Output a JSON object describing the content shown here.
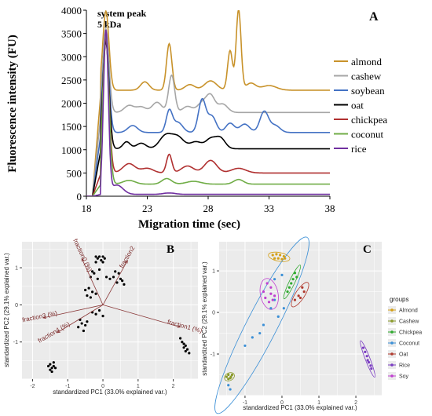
{
  "panel_a": {
    "letter": "A",
    "annotation": [
      "system peak",
      "5 kDa"
    ],
    "xlabel": "Migration time (sec)",
    "ylabel": "Fluorescence intensity (FU)",
    "xticks": [
      "18",
      "23",
      "28",
      "33",
      "38"
    ],
    "yticks": [
      "0",
      "500",
      "1000",
      "1500",
      "2000",
      "2500",
      "3000",
      "3500",
      "4000"
    ]
  },
  "panel_b": {
    "letter": "B",
    "xlabel": "standardized PC1 (33.0% explained var.)",
    "ylabel": "standardized PC2 (29.1% explained var.)",
    "xticks": [
      "-2",
      "-1",
      "0",
      "1",
      "2"
    ],
    "yticks": [
      "-1",
      "0",
      "1"
    ],
    "loadings": [
      "fraction1 (%)",
      "fraction2",
      "fraction3 (%)",
      "fraction4 (%)",
      "fraction0 (%)"
    ]
  },
  "panel_c": {
    "letter": "C",
    "xlabel": "standardized PC1 (33.0% explained var.)",
    "ylabel": "standardized PC2 (29.1% explained var.)",
    "xticks": [
      "-1",
      "0",
      "1",
      "2"
    ],
    "yticks": [
      "-1",
      "0",
      "1"
    ],
    "legend_title": "groups",
    "legend": [
      {
        "name": "Almond",
        "color": "#d4a017"
      },
      {
        "name": "Cashew",
        "color": "#8a9a2a"
      },
      {
        "name": "Chickpea",
        "color": "#2eaa2e"
      },
      {
        "name": "Coconut",
        "color": "#3b8fd6"
      },
      {
        "name": "Oat",
        "color": "#b03a2e"
      },
      {
        "name": "Rice",
        "color": "#7a3cc2"
      },
      {
        "name": "Soy",
        "color": "#c040d0"
      }
    ]
  },
  "chart_data": [
    {
      "type": "line",
      "title": "",
      "xlabel": "Migration time (sec)",
      "ylabel": "Fluorescence intensity (FU)",
      "xlim": [
        18,
        38
      ],
      "ylim": [
        0,
        4000
      ],
      "grid": false,
      "legend_position": "right",
      "series": [
        {
          "name": "almond",
          "color": "#c8922a",
          "baseline": 2280,
          "peaks": [
            [
              19.6,
              1700,
              0.25
            ],
            [
              22.8,
              180,
              0.35
            ],
            [
              24.8,
              1000,
              0.22
            ],
            [
              26.5,
              120,
              0.4
            ],
            [
              28.2,
              200,
              0.5
            ],
            [
              29.8,
              850,
              0.2
            ],
            [
              30.5,
              1730,
              0.2
            ],
            [
              31.5,
              150,
              0.4
            ],
            [
              33,
              100,
              0.6
            ]
          ]
        },
        {
          "name": "cashew",
          "color": "#a6a6a6",
          "baseline": 1800,
          "peaks": [
            [
              19.6,
              1800,
              0.25
            ],
            [
              21.5,
              150,
              0.4
            ],
            [
              22.5,
              120,
              0.4
            ],
            [
              23.8,
              220,
              0.4
            ],
            [
              25,
              800,
              0.25
            ],
            [
              26.3,
              130,
              0.4
            ],
            [
              27.5,
              200,
              0.4
            ],
            [
              28.2,
              350,
              0.35
            ],
            [
              29.2,
              180,
              0.4
            ]
          ]
        },
        {
          "name": "soybean",
          "color": "#4472c4",
          "baseline": 1370,
          "peaks": [
            [
              19.6,
              2000,
              0.25
            ],
            [
              21.8,
              150,
              0.4
            ],
            [
              24.8,
              450,
              0.25
            ],
            [
              25.5,
              220,
              0.4
            ],
            [
              27.5,
              700,
              0.3
            ],
            [
              28.3,
              350,
              0.35
            ],
            [
              29.8,
              200,
              0.35
            ],
            [
              31,
              180,
              0.4
            ],
            [
              32.6,
              450,
              0.35
            ],
            [
              33.5,
              150,
              0.4
            ]
          ]
        },
        {
          "name": "oat",
          "color": "#000000",
          "baseline": 1020,
          "peaks": [
            [
              19.6,
              2300,
              0.25
            ],
            [
              21.3,
              150,
              0.3
            ],
            [
              22.5,
              120,
              0.4
            ],
            [
              24.5,
              280,
              0.5
            ],
            [
              25.5,
              250,
              0.5
            ],
            [
              27,
              150,
              0.5
            ],
            [
              28.2,
              200,
              0.4
            ],
            [
              29,
              230,
              0.4
            ]
          ]
        },
        {
          "name": "chickpea",
          "color": "#b03030",
          "baseline": 500,
          "peaks": [
            [
              19.6,
              2900,
              0.25
            ],
            [
              21.5,
              200,
              0.5
            ],
            [
              23,
              100,
              0.5
            ],
            [
              24.8,
              400,
              0.22
            ],
            [
              26.3,
              150,
              0.5
            ],
            [
              28.2,
              270,
              0.5
            ],
            [
              30.5,
              100,
              0.6
            ]
          ]
        },
        {
          "name": "coconut",
          "color": "#70ad47",
          "baseline": 260,
          "peaks": [
            [
              19.6,
              3200,
              0.25
            ],
            [
              21.5,
              80,
              0.5
            ],
            [
              24.6,
              120,
              0.4
            ],
            [
              26.8,
              60,
              0.6
            ],
            [
              30.5,
              100,
              0.4
            ]
          ]
        },
        {
          "name": "rice",
          "color": "#7030a0",
          "baseline": 40,
          "peaks": [
            [
              19.6,
              3500,
              0.2
            ],
            [
              20.5,
              200,
              0.5
            ],
            [
              24.8,
              30,
              0.5
            ]
          ]
        }
      ]
    },
    {
      "type": "scatter",
      "title": "",
      "xlabel": "standardized PC1 (33.0% explained var.)",
      "ylabel": "standardized PC2 (29.1% explained var.)",
      "xlim": [
        -2.3,
        2.7
      ],
      "ylim": [
        -2.0,
        1.7
      ],
      "points": [
        [
          -1.45,
          -1.7
        ],
        [
          -1.5,
          -1.75
        ],
        [
          -1.4,
          -1.65
        ],
        [
          -1.35,
          -1.7
        ],
        [
          -1.45,
          -1.8
        ],
        [
          -1.5,
          -1.6
        ],
        [
          -1.55,
          -1.65
        ],
        [
          -1.4,
          -1.55
        ],
        [
          -0.2,
          1.3
        ],
        [
          -0.1,
          1.3
        ],
        [
          0.0,
          1.3
        ],
        [
          -0.15,
          1.25
        ],
        [
          -0.05,
          1.2
        ],
        [
          0.05,
          1.25
        ],
        [
          -0.2,
          1.15
        ],
        [
          0.0,
          1.15
        ],
        [
          -0.3,
          0.9
        ],
        [
          -0.25,
          0.85
        ],
        [
          -0.1,
          0.95
        ],
        [
          -0.35,
          0.75
        ],
        [
          -0.15,
          0.7
        ],
        [
          0.1,
          0.75
        ],
        [
          0.2,
          0.7
        ],
        [
          -0.5,
          0.4
        ],
        [
          -0.4,
          0.45
        ],
        [
          -0.3,
          0.35
        ],
        [
          -0.45,
          0.25
        ],
        [
          -0.35,
          0.2
        ],
        [
          -0.2,
          0.3
        ],
        [
          0.35,
          0.9
        ],
        [
          0.45,
          0.85
        ],
        [
          0.3,
          0.75
        ],
        [
          0.5,
          0.7
        ],
        [
          0.4,
          0.6
        ],
        [
          0.6,
          0.55
        ],
        [
          0.55,
          0.65
        ],
        [
          -0.6,
          -0.5
        ],
        [
          -0.5,
          -0.55
        ],
        [
          -0.7,
          -0.6
        ],
        [
          -0.55,
          -0.7
        ],
        [
          -0.65,
          -0.4
        ],
        [
          -0.45,
          -0.45
        ],
        [
          -0.3,
          -0.2
        ],
        [
          -0.2,
          -0.25
        ],
        [
          -0.1,
          -0.15
        ],
        [
          0.0,
          -0.3
        ],
        [
          2.2,
          -0.9
        ],
        [
          2.25,
          -1.0
        ],
        [
          2.3,
          -1.05
        ],
        [
          2.35,
          -1.1
        ],
        [
          2.3,
          -1.15
        ],
        [
          2.4,
          -1.2
        ],
        [
          2.35,
          -1.25
        ],
        [
          2.45,
          -1.3
        ]
      ],
      "loadings": [
        {
          "name": "fraction1 (%)",
          "x": 2.2,
          "y": -0.6
        },
        {
          "name": "fraction2",
          "x": 0.7,
          "y": 1.2
        },
        {
          "name": "fraction3 (%)",
          "x": -1.7,
          "y": -0.35
        },
        {
          "name": "fraction4 (%)",
          "x": -1.3,
          "y": -0.75
        },
        {
          "name": "fraction0 (%)",
          "x": -0.6,
          "y": 1.25
        }
      ]
    },
    {
      "type": "scatter",
      "title": "",
      "xlabel": "standardized PC1 (33.0% explained var.)",
      "ylabel": "standardized PC2 (29.1% explained var.)",
      "xlim": [
        -1.7,
        2.7
      ],
      "ylim": [
        -2.0,
        1.7
      ],
      "legend_position": "right",
      "series": [
        {
          "name": "Almond",
          "points": [
            [
              -0.25,
              1.38
            ],
            [
              -0.15,
              1.4
            ],
            [
              -0.05,
              1.38
            ],
            [
              0.05,
              1.35
            ],
            [
              -0.2,
              1.3
            ],
            [
              -0.1,
              1.3
            ],
            [
              0.0,
              1.28
            ],
            [
              0.08,
              1.3
            ]
          ]
        },
        {
          "name": "Cashew",
          "points": [
            [
              -1.45,
              -1.5
            ],
            [
              -1.5,
              -1.55
            ],
            [
              -1.4,
              -1.58
            ],
            [
              -1.35,
              -1.5
            ],
            [
              -1.45,
              -1.6
            ],
            [
              -1.38,
              -1.55
            ]
          ]
        },
        {
          "name": "Chickpea",
          "points": [
            [
              0.35,
              0.95
            ],
            [
              0.4,
              0.85
            ],
            [
              0.3,
              0.8
            ],
            [
              0.25,
              0.7
            ],
            [
              0.2,
              0.6
            ],
            [
              0.15,
              0.5
            ]
          ]
        },
        {
          "name": "Coconut",
          "points": [
            [
              -1.45,
              -1.75
            ],
            [
              -1.4,
              -1.85
            ],
            [
              -1.0,
              -0.8
            ],
            [
              -0.8,
              -0.6
            ],
            [
              -0.5,
              -0.3
            ],
            [
              -0.3,
              0.1
            ],
            [
              -0.6,
              -0.5
            ],
            [
              -0.2,
              0.3
            ],
            [
              0.05,
              0.1
            ],
            [
              -0.1,
              -0.1
            ],
            [
              0.0,
              0.9
            ],
            [
              -0.2,
              0.8
            ]
          ]
        },
        {
          "name": "Oat",
          "points": [
            [
              0.55,
              0.6
            ],
            [
              0.6,
              0.5
            ],
            [
              0.45,
              0.4
            ],
            [
              0.35,
              0.3
            ],
            [
              0.5,
              0.35
            ]
          ]
        },
        {
          "name": "Rice",
          "points": [
            [
              2.2,
              -0.85
            ],
            [
              2.25,
              -0.95
            ],
            [
              2.3,
              -1.05
            ],
            [
              2.32,
              -1.15
            ],
            [
              2.35,
              -1.2
            ],
            [
              2.4,
              -1.28
            ],
            [
              2.42,
              -1.35
            ]
          ]
        },
        {
          "name": "Soy",
          "points": [
            [
              -0.5,
              0.5
            ],
            [
              -0.45,
              0.35
            ],
            [
              -0.3,
              0.45
            ],
            [
              -0.35,
              0.25
            ],
            [
              -0.2,
              0.4
            ],
            [
              -0.3,
              0.6
            ],
            [
              -0.4,
              0.7
            ],
            [
              -0.25,
              0.3
            ]
          ]
        }
      ]
    }
  ]
}
